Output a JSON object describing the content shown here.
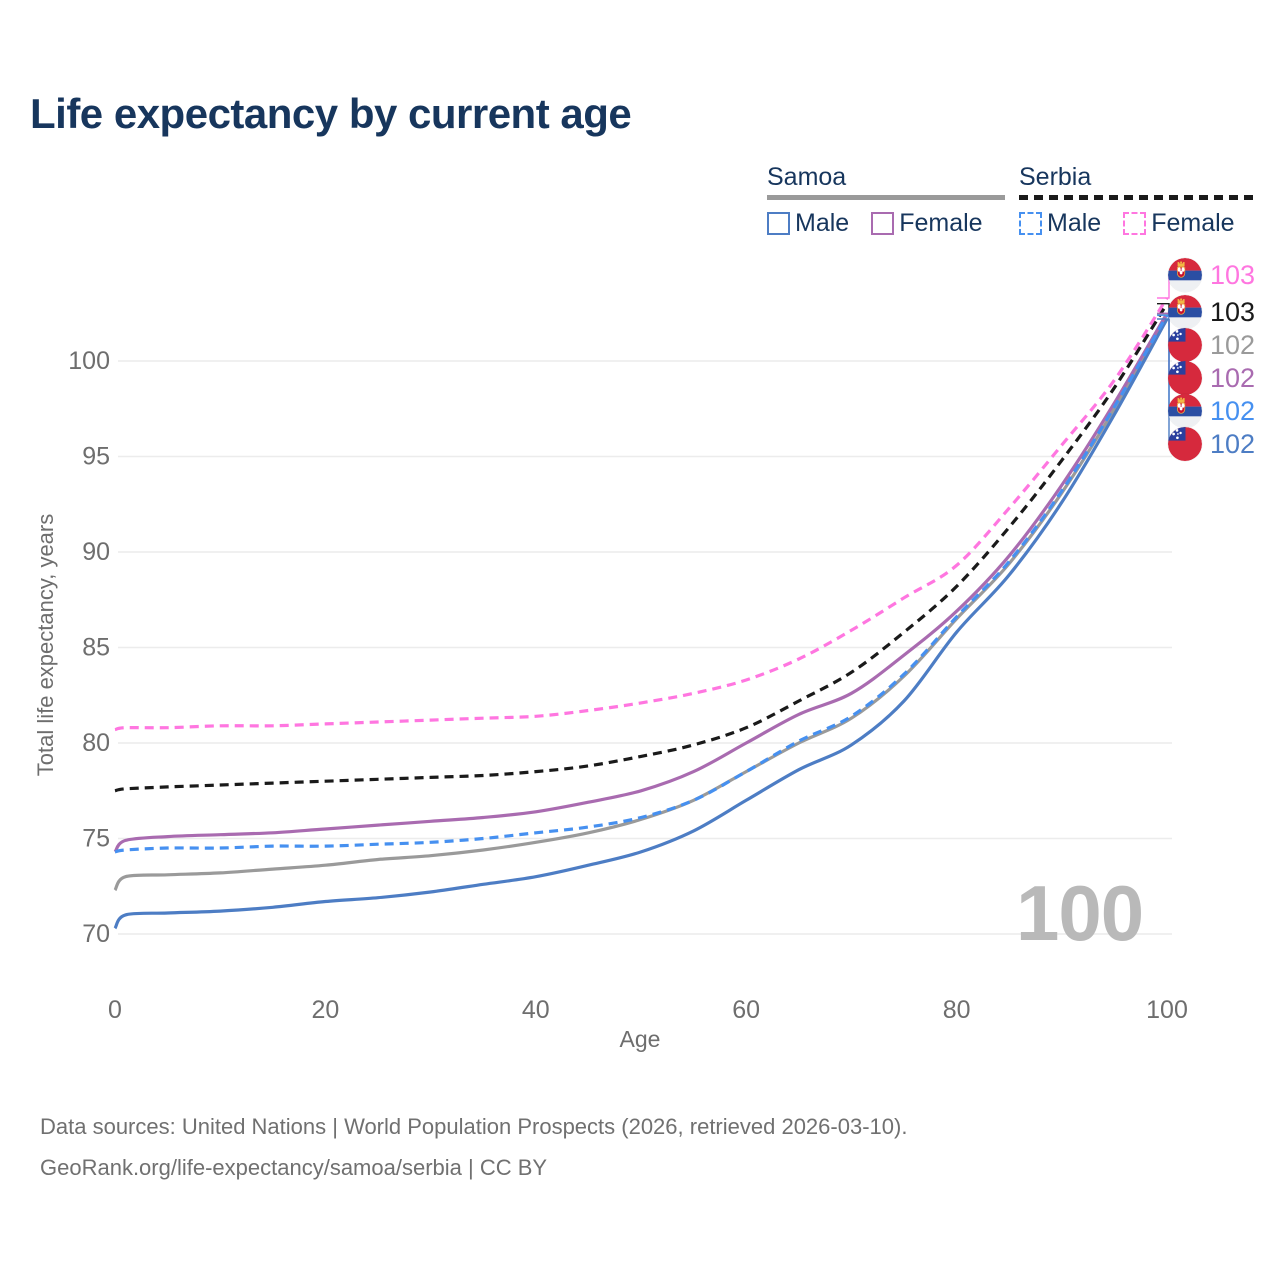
{
  "title": "Life expectancy by current age",
  "watermark": "100",
  "footer": {
    "line1": "Data sources: United Nations | World Population Prospects (2026, retrieved 2026-03-10).",
    "line2": "GeoRank.org/life-expectancy/samoa/serbia | CC BY"
  },
  "legend": {
    "groups": [
      {
        "country": "Samoa",
        "underline_style": "solid",
        "underline_color": "#9a9a9a",
        "items": [
          {
            "label": "Male",
            "color": "#4d7dc4",
            "dashed": false
          },
          {
            "label": "Female",
            "color": "#a96bb0",
            "dashed": false
          }
        ]
      },
      {
        "country": "Serbia",
        "underline_style": "dashed",
        "underline_color": "#1a1a1a",
        "items": [
          {
            "label": "Male",
            "color": "#4690f0",
            "dashed": true
          },
          {
            "label": "Female",
            "color": "#ff76e0",
            "dashed": true
          }
        ]
      }
    ]
  },
  "chart_data": {
    "type": "line",
    "title": "Life expectancy by current age",
    "xlabel": "Age",
    "ylabel": "Total life expectancy, years",
    "x_ticks": [
      0,
      20,
      40,
      60,
      80,
      100
    ],
    "y_ticks": [
      70,
      75,
      80,
      85,
      90,
      95,
      100
    ],
    "xlim": [
      0,
      100
    ],
    "ylim": [
      69.5,
      103.5
    ],
    "grid": "horizontal",
    "legend_position": "top-right",
    "x": [
      0,
      1,
      5,
      10,
      15,
      20,
      25,
      30,
      35,
      40,
      45,
      50,
      55,
      60,
      65,
      70,
      75,
      80,
      85,
      90,
      95,
      100
    ],
    "series": [
      {
        "name": "Samoa",
        "sex": "both",
        "color": "#9a9a9a",
        "dash": "solid",
        "flag": "samoa",
        "end_label": "102",
        "values": [
          72.3,
          73.0,
          73.1,
          73.2,
          73.4,
          73.6,
          73.9,
          74.1,
          74.4,
          74.8,
          75.3,
          76.0,
          77.0,
          78.5,
          80.0,
          81.3,
          83.5,
          86.5,
          89.4,
          93.1,
          97.5,
          102.45
        ]
      },
      {
        "name": "Samoa Male",
        "sex": "male",
        "color": "#4d7dc4",
        "dash": "solid",
        "flag": "samoa",
        "end_label": "102",
        "values": [
          70.3,
          71.0,
          71.1,
          71.2,
          71.4,
          71.7,
          71.9,
          72.2,
          72.6,
          73.0,
          73.6,
          74.3,
          75.4,
          77.0,
          78.6,
          79.9,
          82.2,
          85.8,
          88.8,
          92.6,
          97.2,
          102.2
        ]
      },
      {
        "name": "Samoa Female",
        "sex": "female",
        "color": "#a96bb0",
        "dash": "solid",
        "flag": "samoa",
        "end_label": "102",
        "values": [
          74.3,
          74.9,
          75.1,
          75.2,
          75.3,
          75.5,
          75.7,
          75.9,
          76.1,
          76.4,
          76.9,
          77.5,
          78.5,
          80.0,
          81.5,
          82.6,
          84.6,
          86.9,
          89.8,
          93.5,
          97.8,
          102.5
        ]
      },
      {
        "name": "Serbia Male",
        "sex": "male",
        "color": "#4690f0",
        "dash": "dashed",
        "flag": "serbia",
        "end_label": "102",
        "values": [
          74.3,
          74.4,
          74.5,
          74.5,
          74.6,
          74.6,
          74.7,
          74.8,
          75.0,
          75.3,
          75.6,
          76.1,
          77.0,
          78.5,
          80.1,
          81.4,
          83.6,
          86.6,
          89.5,
          93.2,
          97.6,
          102.4
        ]
      },
      {
        "name": "Serbia",
        "sex": "both",
        "color": "#1a1a1a",
        "dash": "dashed",
        "flag": "serbia",
        "end_label": "103",
        "values": [
          77.5,
          77.6,
          77.7,
          77.8,
          77.9,
          78.0,
          78.1,
          78.2,
          78.3,
          78.5,
          78.8,
          79.3,
          79.9,
          80.8,
          82.2,
          83.7,
          85.8,
          88.2,
          91.3,
          94.8,
          98.6,
          103.0
        ]
      },
      {
        "name": "Serbia Female",
        "sex": "female",
        "color": "#ff76e0",
        "dash": "dashed",
        "flag": "serbia",
        "end_label": "103",
        "values": [
          80.7,
          80.8,
          80.8,
          80.9,
          80.9,
          81.0,
          81.1,
          81.2,
          81.3,
          81.4,
          81.7,
          82.1,
          82.6,
          83.3,
          84.4,
          85.9,
          87.6,
          89.3,
          92.3,
          95.6,
          99.0,
          103.3
        ]
      }
    ],
    "label_order": [
      "Serbia Female",
      "Serbia",
      "Samoa",
      "Samoa Female",
      "Serbia Male",
      "Samoa Male"
    ]
  }
}
